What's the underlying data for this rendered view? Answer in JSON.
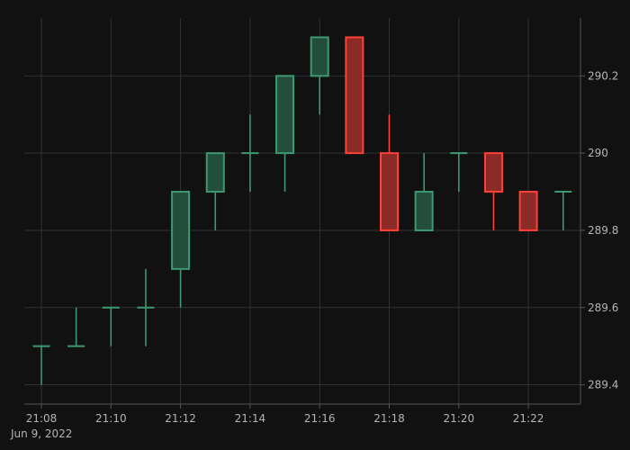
{
  "chart_data": {
    "type": "candlestick",
    "x": [
      "21:08",
      "21:09",
      "21:10",
      "21:11",
      "21:12",
      "21:13",
      "21:14",
      "21:15",
      "21:16",
      "21:17",
      "21:18",
      "21:19",
      "21:20",
      "21:21",
      "21:22",
      "21:23"
    ],
    "open": [
      289.5,
      289.5,
      289.6,
      289.6,
      289.7,
      289.9,
      290.0,
      290.0,
      290.2,
      290.3,
      290.0,
      289.8,
      290.0,
      290.0,
      289.9,
      289.9
    ],
    "high": [
      289.5,
      289.6,
      289.6,
      289.7,
      289.9,
      290.0,
      290.1,
      290.2,
      290.3,
      290.3,
      290.1,
      290.0,
      290.0,
      290.0,
      289.9,
      289.9
    ],
    "low": [
      289.4,
      289.5,
      289.5,
      289.5,
      289.6,
      289.8,
      289.9,
      289.9,
      290.1,
      290.0,
      289.8,
      289.8,
      289.9,
      289.8,
      289.8,
      289.8
    ],
    "close": [
      289.5,
      289.5,
      289.6,
      289.6,
      289.9,
      290.0,
      290.0,
      290.2,
      290.3,
      290.0,
      289.8,
      289.9,
      290.0,
      289.9,
      289.8,
      289.9
    ],
    "x_ticks": [
      "21:08",
      "21:10",
      "21:12",
      "21:14",
      "21:16",
      "21:18",
      "21:20",
      "21:22"
    ],
    "x_date_label": "Jun 9, 2022",
    "y_ticks": [
      "289.4",
      "289.6",
      "289.8",
      "290",
      "290.2"
    ],
    "y_tick_values": [
      289.4,
      289.6,
      289.8,
      290.0,
      290.2
    ],
    "ylim": [
      289.35,
      290.35
    ],
    "y_axis_side": "right",
    "grid": true,
    "colors": {
      "increasing": "#3d9970",
      "increasing_fill": "#234d3d",
      "decreasing": "#ff4136",
      "decreasing_fill": "#8b2a27",
      "grid": "#2e3338",
      "axis": "#555555",
      "text": "#b4b4b4",
      "background": "#111111"
    }
  }
}
